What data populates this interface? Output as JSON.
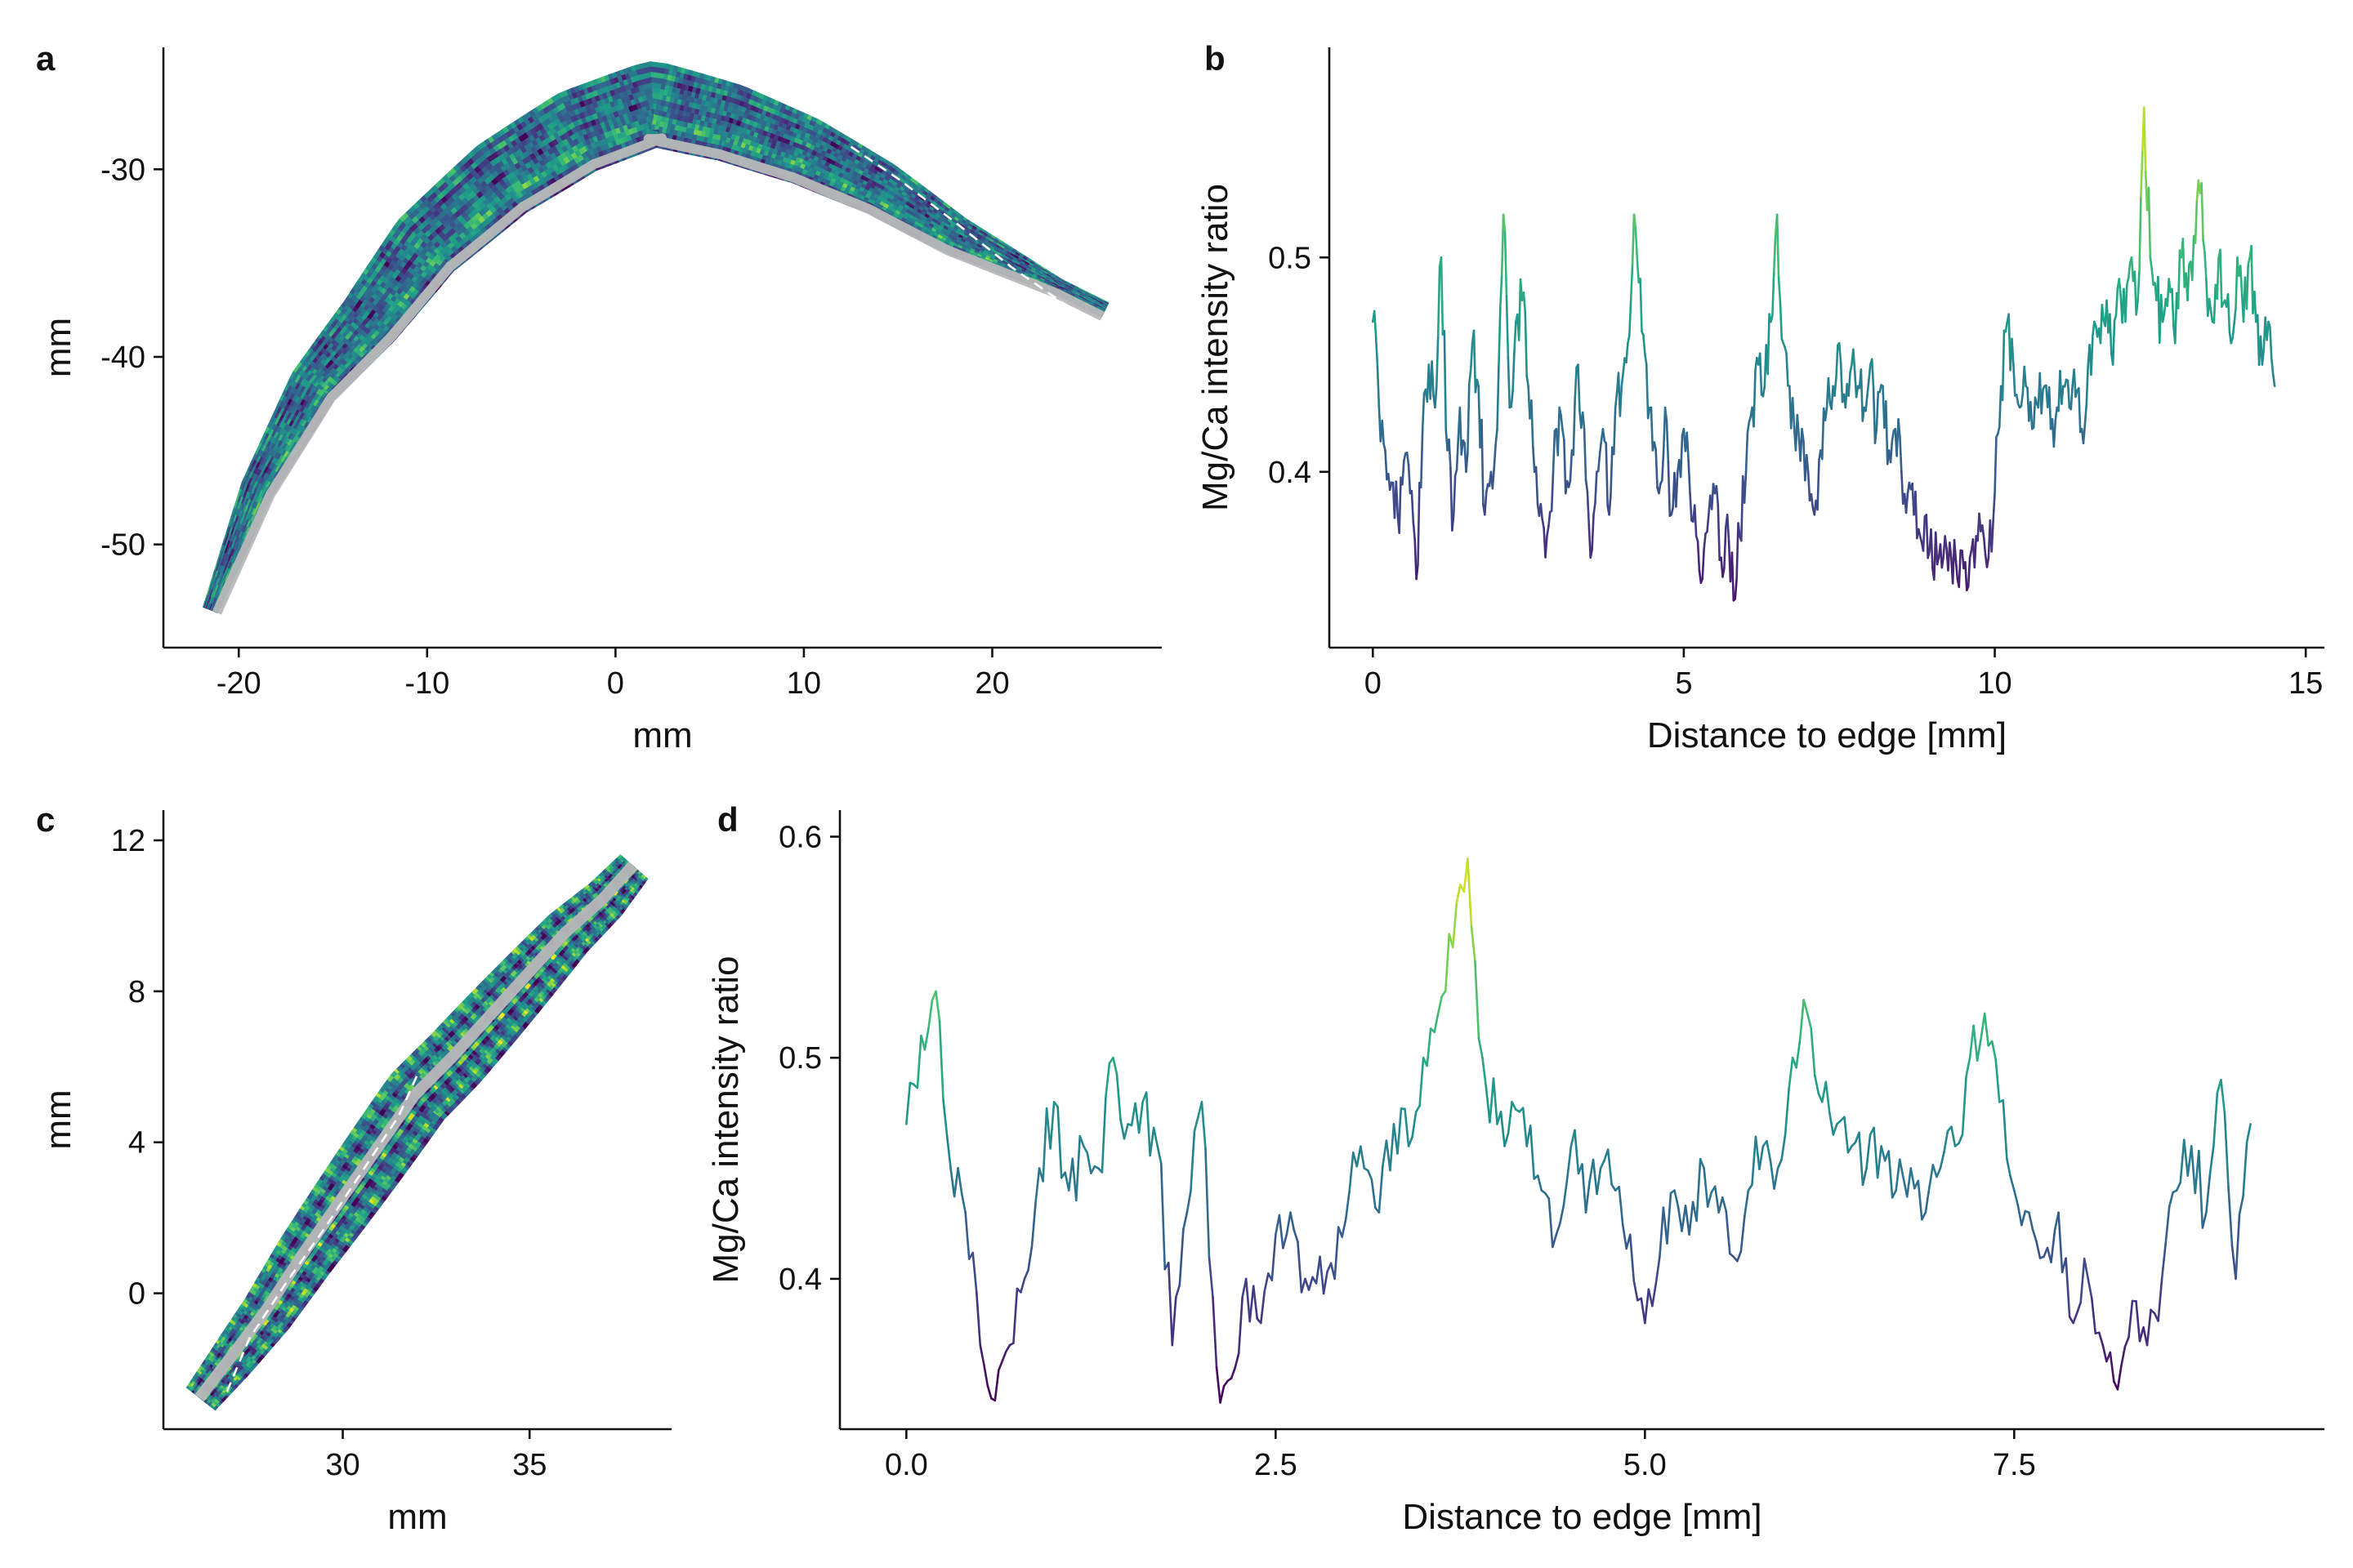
{
  "colors": {
    "viridis": [
      "#440154",
      "#482878",
      "#3e4a89",
      "#31688e",
      "#26828e",
      "#1f9e89",
      "#35b779",
      "#6ece58",
      "#b5de2b",
      "#fde725"
    ],
    "gray_mask": "#b8b8b8",
    "dashed_line": "#ffffff",
    "axis": "#111111"
  },
  "panels": {
    "a": {
      "letter": "a",
      "xlabel": "mm",
      "ylabel": "mm",
      "xticks": [
        "-20",
        "-10",
        "0",
        "10",
        "20"
      ],
      "yticks": [
        "-30",
        "-40",
        "-50"
      ]
    },
    "b": {
      "letter": "b",
      "xlabel": "Distance to edge [mm]",
      "ylabel": "Mg/Ca intensity ratio",
      "xticks": [
        "0",
        "5",
        "10",
        "15"
      ],
      "yticks": [
        "0.4",
        "0.5"
      ]
    },
    "c": {
      "letter": "c",
      "xlabel": "mm",
      "ylabel": "mm",
      "xticks": [
        "30",
        "35"
      ],
      "yticks": [
        "12",
        "8",
        "4",
        "0"
      ]
    },
    "d": {
      "letter": "d",
      "xlabel": "Distance to edge [mm]",
      "ylabel": "Mg/Ca intensity ratio",
      "xticks": [
        "0.0",
        "2.5",
        "5.0",
        "7.5"
      ],
      "yticks": [
        "0.6",
        "0.5",
        "0.4"
      ]
    }
  },
  "chart_data": [
    {
      "panel": "a",
      "type": "heatmap",
      "xlabel": "mm",
      "ylabel": "mm",
      "xlim": [
        -24,
        29
      ],
      "ylim": [
        -55.5,
        -23.5
      ],
      "colormap": "viridis",
      "shell_centerline": {
        "x": [
          -21.5,
          -19,
          -16,
          -13,
          -10,
          -6,
          -2,
          2,
          6,
          10,
          14,
          18,
          22,
          26
        ],
        "y": [
          -53.5,
          -47,
          -41.5,
          -38,
          -34,
          -30.5,
          -28,
          -26.5,
          -27.5,
          -29,
          -31,
          -33.5,
          -35.5,
          -37.5
        ]
      },
      "transect": {
        "x": [
          12.5,
          15,
          18,
          21,
          24
        ],
        "y": [
          -28.8,
          -30.5,
          -32.8,
          -35.2,
          -37.3
        ]
      }
    },
    {
      "panel": "b",
      "type": "line",
      "xlabel": "Distance to edge [mm]",
      "ylabel": "Mg/Ca intensity ratio",
      "xlim": [
        -0.7,
        15.3
      ],
      "ylim": [
        0.318,
        0.598
      ],
      "colormap": "viridis",
      "color_range": [
        0.33,
        0.585
      ],
      "x": [
        0.0,
        0.1,
        0.2,
        0.3,
        0.4,
        0.5,
        0.6,
        0.7,
        0.8,
        0.9,
        1.0,
        1.1,
        1.2,
        1.3,
        1.4,
        1.5,
        1.6,
        1.7,
        1.8,
        1.9,
        2.0,
        2.1,
        2.2,
        2.3,
        2.4,
        2.5,
        2.6,
        2.7,
        2.8,
        2.9,
        3.0,
        3.1,
        3.2,
        3.3,
        3.4,
        3.5,
        3.6,
        3.7,
        3.8,
        3.9,
        4.0,
        4.1,
        4.2,
        4.3,
        4.4,
        4.5,
        4.6,
        4.7,
        4.8,
        4.9,
        5.0,
        5.1,
        5.2,
        5.3,
        5.4,
        5.5,
        5.6,
        5.7,
        5.8,
        5.9,
        6.0,
        6.1,
        6.2,
        6.3,
        6.4,
        6.5,
        6.6,
        6.7,
        6.8,
        6.9,
        7.0,
        7.1,
        7.2,
        7.3,
        7.4,
        7.5,
        7.6,
        7.7,
        7.8,
        7.9,
        8.0,
        8.1,
        8.2,
        8.3,
        8.4,
        8.5,
        8.6,
        8.7,
        8.8,
        8.9,
        9.0,
        9.1,
        9.2,
        9.3,
        9.4,
        9.5,
        9.6,
        9.7,
        9.8,
        9.9,
        10.0,
        10.1,
        10.2,
        10.3,
        10.4,
        10.5,
        10.6,
        10.7,
        10.8,
        10.9,
        11.0,
        11.1,
        11.2,
        11.3,
        11.4,
        11.5,
        11.6,
        11.7,
        11.8,
        11.9,
        12.0,
        12.1,
        12.2,
        12.3,
        12.4,
        12.5,
        12.6,
        12.7,
        12.8,
        12.9,
        13.0,
        13.1,
        13.2,
        13.3,
        13.4,
        13.5,
        13.6,
        13.7,
        13.8,
        13.9,
        14.0,
        14.1,
        14.2,
        14.3,
        14.4,
        14.5
      ],
      "y": [
        0.47,
        0.43,
        0.41,
        0.395,
        0.38,
        0.405,
        0.39,
        0.35,
        0.42,
        0.45,
        0.43,
        0.5,
        0.41,
        0.38,
        0.43,
        0.4,
        0.46,
        0.44,
        0.38,
        0.4,
        0.42,
        0.52,
        0.43,
        0.47,
        0.48,
        0.44,
        0.4,
        0.385,
        0.37,
        0.4,
        0.43,
        0.39,
        0.41,
        0.45,
        0.42,
        0.36,
        0.4,
        0.42,
        0.38,
        0.43,
        0.44,
        0.46,
        0.52,
        0.49,
        0.45,
        0.41,
        0.39,
        0.43,
        0.38,
        0.4,
        0.42,
        0.39,
        0.37,
        0.35,
        0.38,
        0.39,
        0.36,
        0.38,
        0.34,
        0.37,
        0.4,
        0.43,
        0.45,
        0.44,
        0.47,
        0.52,
        0.46,
        0.44,
        0.41,
        0.42,
        0.4,
        0.38,
        0.41,
        0.43,
        0.44,
        0.46,
        0.43,
        0.45,
        0.44,
        0.43,
        0.45,
        0.42,
        0.44,
        0.41,
        0.42,
        0.4,
        0.39,
        0.38,
        0.37,
        0.38,
        0.355,
        0.36,
        0.37,
        0.36,
        0.35,
        0.355,
        0.36,
        0.37,
        0.375,
        0.36,
        0.39,
        0.44,
        0.47,
        0.45,
        0.43,
        0.44,
        0.42,
        0.43,
        0.44,
        0.42,
        0.43,
        0.44,
        0.43,
        0.435,
        0.42,
        0.45,
        0.47,
        0.46,
        0.48,
        0.45,
        0.49,
        0.47,
        0.5,
        0.48,
        0.57,
        0.5,
        0.48,
        0.47,
        0.49,
        0.46,
        0.5,
        0.48,
        0.51,
        0.53,
        0.49,
        0.47,
        0.5,
        0.48,
        0.46,
        0.5,
        0.47,
        0.5,
        0.47,
        0.45,
        0.47,
        0.44
      ]
    },
    {
      "panel": "c",
      "type": "heatmap",
      "xlabel": "mm",
      "ylabel": "mm",
      "xlim": [
        25.2,
        38.8
      ],
      "ylim": [
        -3.6,
        12.8
      ],
      "colormap": "viridis",
      "shell_centerline": {
        "x": [
          26.2,
          27,
          28,
          29,
          30,
          31,
          32,
          33,
          34,
          35,
          36,
          37,
          37.8
        ],
        "y": [
          -2.8,
          -1.8,
          -0.5,
          1,
          2.4,
          3.8,
          5.2,
          6.2,
          7.3,
          8.4,
          9.5,
          10.4,
          11.3
        ]
      },
      "transect": {
        "x": [
          26.9,
          27.5,
          28.5,
          29.5,
          30.5,
          31.5,
          32
        ],
        "y": [
          -2.6,
          -1.2,
          0.3,
          1.7,
          3.2,
          4.7,
          5.8
        ]
      }
    },
    {
      "panel": "d",
      "type": "line",
      "xlabel": "Distance to edge [mm]",
      "ylabel": "Mg/Ca intensity ratio",
      "xlim": [
        -0.45,
        9.6
      ],
      "ylim": [
        0.332,
        0.612
      ],
      "colormap": "viridis",
      "color_range": [
        0.345,
        0.6
      ],
      "x": [
        0.0,
        0.1,
        0.2,
        0.3,
        0.4,
        0.5,
        0.6,
        0.7,
        0.8,
        0.9,
        1.0,
        1.1,
        1.2,
        1.3,
        1.4,
        1.5,
        1.6,
        1.7,
        1.8,
        1.9,
        2.0,
        2.1,
        2.2,
        2.3,
        2.4,
        2.5,
        2.6,
        2.7,
        2.8,
        2.9,
        3.0,
        3.1,
        3.2,
        3.3,
        3.4,
        3.5,
        3.6,
        3.7,
        3.8,
        3.9,
        4.0,
        4.1,
        4.2,
        4.3,
        4.4,
        4.5,
        4.6,
        4.7,
        4.8,
        4.9,
        5.0,
        5.1,
        5.2,
        5.3,
        5.4,
        5.5,
        5.6,
        5.7,
        5.8,
        5.9,
        6.0,
        6.1,
        6.2,
        6.3,
        6.4,
        6.5,
        6.6,
        6.7,
        6.8,
        6.9,
        7.0,
        7.1,
        7.2,
        7.3,
        7.4,
        7.5,
        7.6,
        7.7,
        7.8,
        7.9,
        8.0,
        8.1,
        8.2,
        8.3,
        8.4,
        8.5,
        8.6,
        8.7,
        8.8,
        8.9,
        9.0,
        9.1
      ],
      "y": [
        0.47,
        0.51,
        0.53,
        0.45,
        0.43,
        0.37,
        0.345,
        0.37,
        0.4,
        0.45,
        0.48,
        0.44,
        0.46,
        0.45,
        0.5,
        0.47,
        0.48,
        0.46,
        0.37,
        0.43,
        0.48,
        0.36,
        0.355,
        0.4,
        0.38,
        0.42,
        0.43,
        0.4,
        0.41,
        0.4,
        0.44,
        0.45,
        0.43,
        0.47,
        0.46,
        0.5,
        0.52,
        0.55,
        0.59,
        0.5,
        0.47,
        0.48,
        0.46,
        0.44,
        0.42,
        0.46,
        0.43,
        0.45,
        0.44,
        0.42,
        0.38,
        0.41,
        0.44,
        0.42,
        0.45,
        0.43,
        0.41,
        0.44,
        0.46,
        0.45,
        0.5,
        0.52,
        0.48,
        0.47,
        0.46,
        0.45,
        0.46,
        0.44,
        0.45,
        0.43,
        0.45,
        0.46,
        0.5,
        0.52,
        0.48,
        0.44,
        0.43,
        0.41,
        0.43,
        0.38,
        0.4,
        0.37,
        0.35,
        0.39,
        0.37,
        0.4,
        0.44,
        0.46,
        0.43,
        0.49,
        0.4,
        0.47
      ]
    }
  ]
}
